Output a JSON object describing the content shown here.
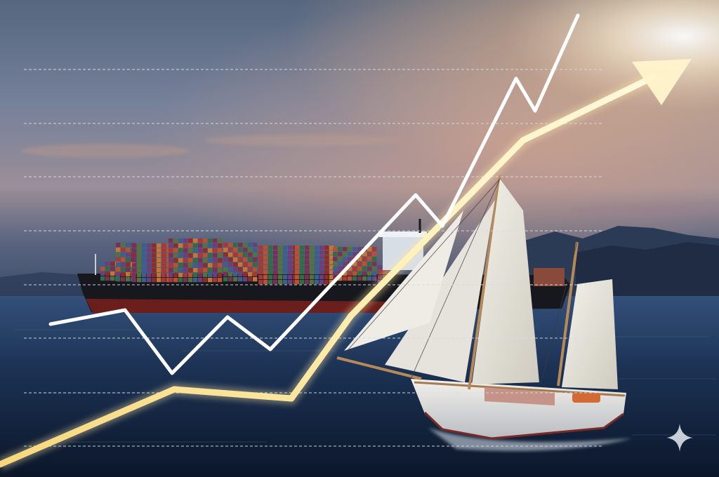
{
  "scene": {
    "subject": "container-ship-and-sailboat-with-rising-trend-lines",
    "palette": {
      "sky_top": "#5d6e8a",
      "sky_mid": "#8a8fa0",
      "horizon_glow": "#f0b889",
      "sea_dark": "#0f2036",
      "sea_mid": "#23385a",
      "arrow": "#ffe9a8",
      "zigzag": "#ffffff",
      "grid": "#d6dbe6"
    }
  },
  "overlay": {
    "zigzag_line": "white-zigzag-trend-line",
    "trend_arrow": "golden-rising-arrow",
    "gridlines": "dashed-horizontal-gridlines"
  },
  "corner_mark": {
    "icon": "sparkle-icon"
  }
}
